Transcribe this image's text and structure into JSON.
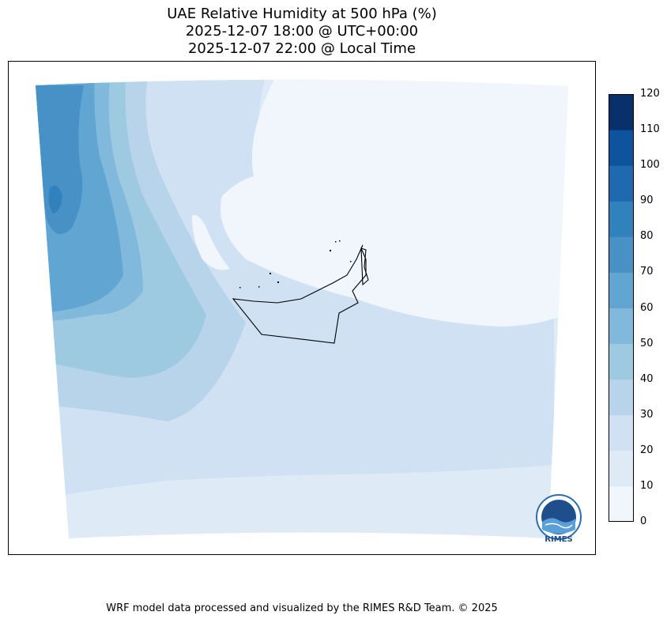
{
  "title": {
    "line1": "UAE Relative Humidity at 500 hPa (%)",
    "line2": "2025-12-07 18:00 @ UTC+00:00",
    "line3": "2025-12-07 22:00 @ Local Time"
  },
  "colorbar": {
    "ticks": [
      "120",
      "110",
      "100",
      "90",
      "80",
      "70",
      "60",
      "50",
      "40",
      "30",
      "20",
      "10",
      "0"
    ],
    "levels": [
      0,
      10,
      20,
      30,
      40,
      50,
      60,
      70,
      80,
      90,
      100,
      110,
      120
    ],
    "colors": [
      "#f0f6fc",
      "#deebf7",
      "#cfe1f2",
      "#b7d4ea",
      "#9ecae1",
      "#80b9db",
      "#61a5d2",
      "#4891c6",
      "#3181bd",
      "#1e69af",
      "#0d539d",
      "#08306b"
    ]
  },
  "logo": {
    "name": "RIMES",
    "text": "RIMES"
  },
  "footer": "WRF model data processed and visualized by the RIMES R&D Team. © 2025"
}
